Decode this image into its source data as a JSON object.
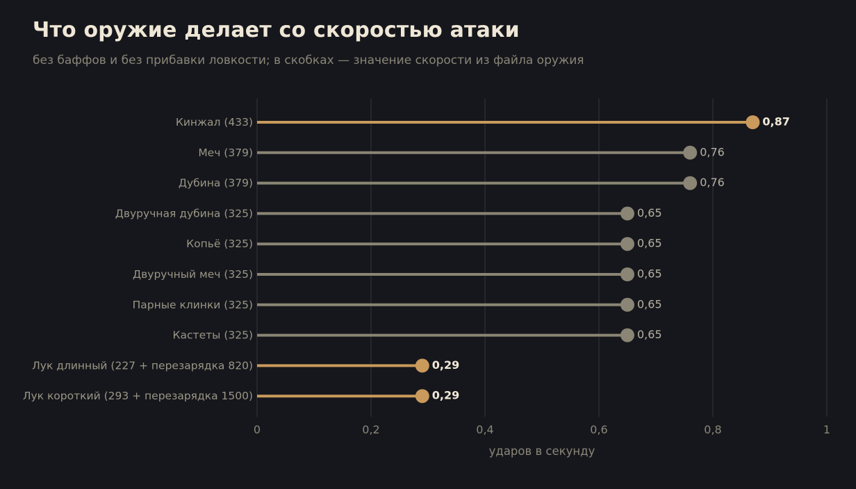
{
  "title": "Что оружие делает со скоростью атаки",
  "subtitle": "без баффов и без прибавки ловкости; в скобках — значение скорости из файла оружия",
  "colors": {
    "background": "#16171c",
    "highlight": "#c99a5b",
    "muted": "#8a8574",
    "grid": "#2c2d33",
    "value_highlight": "#f1e9d8",
    "value_muted": "#b6b1a3"
  },
  "chart_data": {
    "type": "lollipop",
    "orientation": "horizontal",
    "title": "Что оружие делает со скоростью атаки",
    "subtitle": "без баффов и без прибавки ловкости; в скобках — значение скорости из файла оружия",
    "xlabel": "ударов в секунду",
    "ylabel": "",
    "xlim": [
      0,
      1
    ],
    "xticks": [
      0,
      0.2,
      0.4,
      0.6,
      0.8,
      1
    ],
    "xtick_labels": [
      "0",
      "0,2",
      "0,4",
      "0,6",
      "0,8",
      "1"
    ],
    "grid": "vertical",
    "categories": [
      "Кинжал  (433)",
      "Меч  (379)",
      "Дубина  (379)",
      "Двуручная дубина  (325)",
      "Копьё  (325)",
      "Двуручный меч  (325)",
      "Парные клинки  (325)",
      "Кастеты  (325)",
      "Лук длинный  (227 + перезарядка 820)",
      "Лук короткий  (293 + перезарядка 1500)"
    ],
    "values": [
      0.87,
      0.76,
      0.76,
      0.65,
      0.65,
      0.65,
      0.65,
      0.65,
      0.29,
      0.29
    ],
    "value_labels": [
      "0,87",
      "0,76",
      "0,76",
      "0,65",
      "0,65",
      "0,65",
      "0,65",
      "0,65",
      "0,29",
      "0,29"
    ],
    "highlighted": [
      true,
      false,
      false,
      false,
      false,
      false,
      false,
      false,
      true,
      true
    ]
  }
}
